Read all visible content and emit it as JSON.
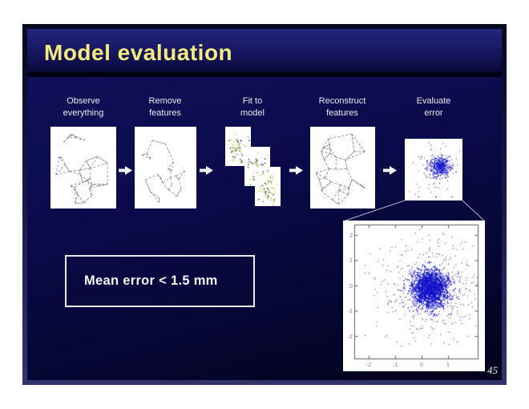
{
  "slide": {
    "title": "Model evaluation",
    "page_number": "45",
    "title_color": "#f3eb7d",
    "background_color": "#0a0a4a",
    "frame_color": "#33336c",
    "label_color": "#e9e9f2"
  },
  "pipeline": {
    "steps": [
      {
        "label": "Observe\neverything",
        "graphic": "face-mesh-full"
      },
      {
        "label": "Remove\nfeatures",
        "graphic": "face-mesh-sparse"
      },
      {
        "label": "Fit to\nmodel",
        "graphic": "model-instance-cards"
      },
      {
        "label": "Reconstruct\nfeatures",
        "graphic": "face-mesh-reconstructed"
      },
      {
        "label": "Evaluate\nerror",
        "graphic": "error-scatter-thumbnail"
      }
    ],
    "arrow_icon": "arrow-right-icon",
    "arrow_color": "#f2f2f6"
  },
  "message_box": {
    "text": "Mean error < 1.5 mm"
  },
  "graphics": {
    "mesh_stroke": "#909090",
    "card_dot_colors": [
      "#1d1d1d",
      "#2f9a2f",
      "#c9c922",
      "#1d1d1d",
      "#2f9a2f",
      "#dfa020"
    ],
    "thumbnail_scatter": {
      "point_color": "#1515c8",
      "stray_color": "#3a3a3a",
      "n_core": 380,
      "n_tail": 90
    }
  },
  "chart_data": {
    "type": "scatter",
    "title": "",
    "xlabel": "",
    "ylabel": "",
    "x_ticks": [
      -2,
      -1,
      0,
      1
    ],
    "y_ticks": [
      2,
      1,
      0,
      -1,
      -2
    ],
    "xlim": [
      -2.55,
      2.15
    ],
    "ylim": [
      -2.9,
      2.4
    ],
    "grid": false,
    "legend": null,
    "point_color": "#1515c8",
    "axis_color": "#5e5e5e",
    "tick_label_color": "#6a6a6a",
    "cluster": {
      "center_x": 0.3,
      "center_y": -0.1,
      "sigma_core": 0.35,
      "sigma_tail": 0.9,
      "n_core": 1600,
      "n_tail": 500
    }
  }
}
